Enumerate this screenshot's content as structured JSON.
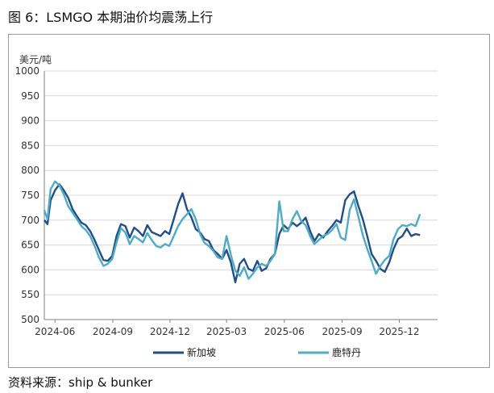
{
  "figure_title": "图 6：LSMGO 本期油价均震荡上行",
  "source_text": "资料来源：ship & bunker",
  "colors": {
    "singapore": "#1f4e8c",
    "hongkong": "#4bacc6",
    "grid": "#d9d9d9",
    "axis": "#7f7f7f"
  },
  "chart_data": {
    "type": "line",
    "ylabel": "美元/吨",
    "ylim": [
      500,
      1000
    ],
    "yticks": [
      500,
      550,
      600,
      650,
      700,
      750,
      800,
      850,
      900,
      950,
      1000
    ],
    "xlim": [
      "2024-05-15",
      "2026-01-31"
    ],
    "xticks": [
      "2024-06",
      "2024-09",
      "2024-12",
      "2025-03",
      "2025-06",
      "2025-09",
      "2025-12"
    ],
    "grid": true,
    "legend": "bottom",
    "series": [
      {
        "name": "新加坡",
        "color": "#1f4e8c",
        "points": [
          [
            "2024-05-15",
            700
          ],
          [
            "2024-05-20",
            692
          ],
          [
            "2024-05-25",
            740
          ],
          [
            "2024-06-01",
            760
          ],
          [
            "2024-06-08",
            772
          ],
          [
            "2024-06-15",
            760
          ],
          [
            "2024-06-22",
            745
          ],
          [
            "2024-06-29",
            722
          ],
          [
            "2024-07-06",
            708
          ],
          [
            "2024-07-13",
            695
          ],
          [
            "2024-07-20",
            690
          ],
          [
            "2024-07-27",
            678
          ],
          [
            "2024-08-03",
            660
          ],
          [
            "2024-08-10",
            640
          ],
          [
            "2024-08-17",
            620
          ],
          [
            "2024-08-24",
            618
          ],
          [
            "2024-08-31",
            628
          ],
          [
            "2024-09-07",
            668
          ],
          [
            "2024-09-14",
            692
          ],
          [
            "2024-09-21",
            688
          ],
          [
            "2024-09-28",
            665
          ],
          [
            "2024-10-05",
            685
          ],
          [
            "2024-10-12",
            678
          ],
          [
            "2024-10-19",
            668
          ],
          [
            "2024-10-26",
            690
          ],
          [
            "2024-11-02",
            676
          ],
          [
            "2024-11-09",
            672
          ],
          [
            "2024-11-16",
            668
          ],
          [
            "2024-11-23",
            678
          ],
          [
            "2024-11-30",
            672
          ],
          [
            "2024-12-07",
            702
          ],
          [
            "2024-12-14",
            732
          ],
          [
            "2024-12-21",
            754
          ],
          [
            "2024-12-28",
            722
          ],
          [
            "2025-01-04",
            706
          ],
          [
            "2025-01-11",
            682
          ],
          [
            "2025-01-18",
            675
          ],
          [
            "2025-01-25",
            662
          ],
          [
            "2025-02-01",
            658
          ],
          [
            "2025-02-08",
            640
          ],
          [
            "2025-02-15",
            632
          ],
          [
            "2025-02-22",
            622
          ],
          [
            "2025-03-01",
            640
          ],
          [
            "2025-03-08",
            615
          ],
          [
            "2025-03-15",
            575
          ],
          [
            "2025-03-22",
            612
          ],
          [
            "2025-03-29",
            622
          ],
          [
            "2025-04-05",
            602
          ],
          [
            "2025-04-12",
            598
          ],
          [
            "2025-04-19",
            618
          ],
          [
            "2025-04-26",
            598
          ],
          [
            "2025-05-03",
            603
          ],
          [
            "2025-05-10",
            622
          ],
          [
            "2025-05-17",
            632
          ],
          [
            "2025-05-24",
            672
          ],
          [
            "2025-05-31",
            690
          ],
          [
            "2025-06-07",
            682
          ],
          [
            "2025-06-14",
            695
          ],
          [
            "2025-06-21",
            688
          ],
          [
            "2025-06-28",
            695
          ],
          [
            "2025-07-05",
            705
          ],
          [
            "2025-07-12",
            678
          ],
          [
            "2025-07-19",
            658
          ],
          [
            "2025-07-26",
            672
          ],
          [
            "2025-08-02",
            665
          ],
          [
            "2025-08-09",
            678
          ],
          [
            "2025-08-16",
            688
          ],
          [
            "2025-08-23",
            700
          ],
          [
            "2025-08-30",
            695
          ],
          [
            "2025-09-06",
            740
          ],
          [
            "2025-09-13",
            752
          ],
          [
            "2025-09-20",
            758
          ],
          [
            "2025-09-27",
            728
          ],
          [
            "2025-10-04",
            702
          ],
          [
            "2025-10-11",
            668
          ],
          [
            "2025-10-18",
            632
          ],
          [
            "2025-10-25",
            618
          ],
          [
            "2025-11-01",
            602
          ],
          [
            "2025-11-08",
            596
          ],
          [
            "2025-11-15",
            615
          ],
          [
            "2025-11-22",
            642
          ],
          [
            "2025-11-29",
            662
          ],
          [
            "2025-12-06",
            668
          ],
          [
            "2025-12-13",
            683
          ],
          [
            "2025-12-20",
            668
          ],
          [
            "2025-12-27",
            672
          ],
          [
            "2026-01-03",
            670
          ]
        ]
      },
      {
        "name": "鹿特丹",
        "color": "#4bacc6",
        "points": [
          [
            "2024-05-15",
            720
          ],
          [
            "2024-05-20",
            702
          ],
          [
            "2024-05-25",
            762
          ],
          [
            "2024-06-01",
            778
          ],
          [
            "2024-06-08",
            770
          ],
          [
            "2024-06-15",
            752
          ],
          [
            "2024-06-22",
            728
          ],
          [
            "2024-06-29",
            715
          ],
          [
            "2024-07-06",
            702
          ],
          [
            "2024-07-13",
            688
          ],
          [
            "2024-07-20",
            680
          ],
          [
            "2024-07-27",
            668
          ],
          [
            "2024-08-03",
            648
          ],
          [
            "2024-08-10",
            625
          ],
          [
            "2024-08-17",
            608
          ],
          [
            "2024-08-24",
            612
          ],
          [
            "2024-08-31",
            622
          ],
          [
            "2024-09-07",
            655
          ],
          [
            "2024-09-14",
            684
          ],
          [
            "2024-09-21",
            675
          ],
          [
            "2024-09-28",
            652
          ],
          [
            "2024-10-05",
            668
          ],
          [
            "2024-10-12",
            662
          ],
          [
            "2024-10-19",
            655
          ],
          [
            "2024-10-26",
            674
          ],
          [
            "2024-11-02",
            660
          ],
          [
            "2024-11-09",
            648
          ],
          [
            "2024-11-16",
            645
          ],
          [
            "2024-11-23",
            652
          ],
          [
            "2024-11-30",
            648
          ],
          [
            "2024-12-07",
            668
          ],
          [
            "2024-12-14",
            688
          ],
          [
            "2024-12-21",
            702
          ],
          [
            "2024-12-28",
            712
          ],
          [
            "2025-01-04",
            722
          ],
          [
            "2025-01-11",
            702
          ],
          [
            "2025-01-18",
            672
          ],
          [
            "2025-01-25",
            654
          ],
          [
            "2025-02-01",
            648
          ],
          [
            "2025-02-08",
            638
          ],
          [
            "2025-02-15",
            625
          ],
          [
            "2025-02-22",
            622
          ],
          [
            "2025-03-01",
            668
          ],
          [
            "2025-03-08",
            630
          ],
          [
            "2025-03-15",
            598
          ],
          [
            "2025-03-22",
            588
          ],
          [
            "2025-03-29",
            605
          ],
          [
            "2025-04-05",
            582
          ],
          [
            "2025-04-12",
            592
          ],
          [
            "2025-04-19",
            605
          ],
          [
            "2025-04-26",
            612
          ],
          [
            "2025-05-03",
            608
          ],
          [
            "2025-05-10",
            618
          ],
          [
            "2025-05-17",
            632
          ],
          [
            "2025-05-24",
            738
          ],
          [
            "2025-05-31",
            678
          ],
          [
            "2025-06-07",
            678
          ],
          [
            "2025-06-14",
            702
          ],
          [
            "2025-06-21",
            718
          ],
          [
            "2025-06-28",
            698
          ],
          [
            "2025-07-05",
            690
          ],
          [
            "2025-07-12",
            668
          ],
          [
            "2025-07-19",
            652
          ],
          [
            "2025-07-26",
            660
          ],
          [
            "2025-08-02",
            668
          ],
          [
            "2025-08-09",
            672
          ],
          [
            "2025-08-16",
            680
          ],
          [
            "2025-08-23",
            692
          ],
          [
            "2025-08-30",
            665
          ],
          [
            "2025-09-06",
            660
          ],
          [
            "2025-09-13",
            720
          ],
          [
            "2025-09-20",
            742
          ],
          [
            "2025-09-27",
            706
          ],
          [
            "2025-10-04",
            670
          ],
          [
            "2025-10-11",
            642
          ],
          [
            "2025-10-18",
            618
          ],
          [
            "2025-10-25",
            592
          ],
          [
            "2025-11-01",
            608
          ],
          [
            "2025-11-08",
            620
          ],
          [
            "2025-11-15",
            628
          ],
          [
            "2025-11-22",
            662
          ],
          [
            "2025-11-29",
            682
          ],
          [
            "2025-12-06",
            690
          ],
          [
            "2025-12-13",
            688
          ],
          [
            "2025-12-20",
            692
          ],
          [
            "2025-12-27",
            688
          ],
          [
            "2026-01-03",
            712
          ]
        ]
      }
    ]
  }
}
